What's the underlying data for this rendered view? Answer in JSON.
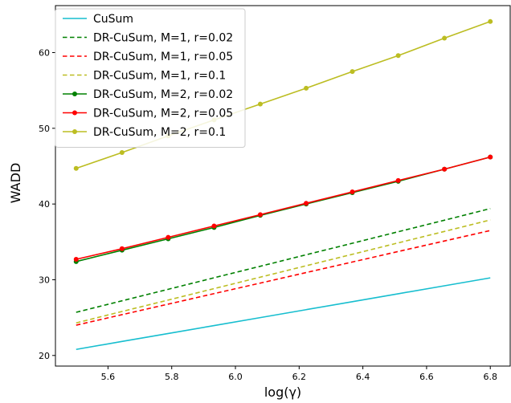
{
  "chart_data": {
    "type": "line",
    "title": "",
    "xlabel": "log(γ)",
    "ylabel": "WADD",
    "xlim": [
      5.435,
      6.865
    ],
    "ylim": [
      18.6,
      66.2
    ],
    "xticks": [
      5.6,
      5.8,
      6.0,
      6.2,
      6.4,
      6.6,
      6.8
    ],
    "xtick_labels": [
      "5.6",
      "5.8",
      "6.0",
      "6.2",
      "6.4",
      "6.6",
      "6.8"
    ],
    "yticks": [
      20,
      30,
      40,
      50,
      60
    ],
    "ytick_labels": [
      "20",
      "30",
      "40",
      "50",
      "60"
    ],
    "grid": false,
    "legend_position": "upper left",
    "x": [
      5.5,
      5.644,
      5.789,
      5.933,
      6.078,
      6.222,
      6.367,
      6.511,
      6.656,
      6.8
    ],
    "series": [
      {
        "name": "CuSum",
        "color": "#17becf",
        "style": "solid",
        "markers": false,
        "values": [
          20.8,
          21.85,
          22.9,
          23.95,
          25.0,
          26.05,
          27.1,
          28.15,
          29.2,
          30.25
        ]
      },
      {
        "name": "DR-CuSum, M=1, r=0.02",
        "color": "#008000",
        "style": "dashed",
        "markers": false,
        "values": [
          25.7,
          27.22,
          28.74,
          30.26,
          31.78,
          33.3,
          34.82,
          36.34,
          37.86,
          39.4
        ]
      },
      {
        "name": "DR-CuSum, M=1, r=0.05",
        "color": "#ff0000",
        "style": "dashed",
        "markers": false,
        "values": [
          24.0,
          25.39,
          26.78,
          28.17,
          29.56,
          30.95,
          32.34,
          33.73,
          35.12,
          36.5
        ]
      },
      {
        "name": "DR-CuSum, M=1, r=0.1",
        "color": "#bcbd22",
        "style": "dashed",
        "markers": false,
        "values": [
          24.3,
          25.81,
          27.32,
          28.83,
          30.34,
          31.85,
          33.36,
          34.87,
          36.38,
          37.9
        ]
      },
      {
        "name": "DR-CuSum, M=2, r=0.02",
        "color": "#008000",
        "style": "solid",
        "markers": true,
        "values": [
          32.4,
          33.9,
          35.4,
          36.9,
          38.5,
          40.0,
          41.5,
          43.0,
          44.6,
          46.2
        ]
      },
      {
        "name": "DR-CuSum, M=2, r=0.05",
        "color": "#ff0000",
        "style": "solid",
        "markers": true,
        "values": [
          32.7,
          34.1,
          35.6,
          37.1,
          38.6,
          40.1,
          41.6,
          43.1,
          44.6,
          46.2
        ]
      },
      {
        "name": "DR-CuSum, M=2, r=0.1",
        "color": "#bcbd22",
        "style": "solid",
        "markers": true,
        "values": [
          44.7,
          46.8,
          49.0,
          51.1,
          53.2,
          55.3,
          57.5,
          59.6,
          61.9,
          64.1
        ]
      }
    ]
  }
}
